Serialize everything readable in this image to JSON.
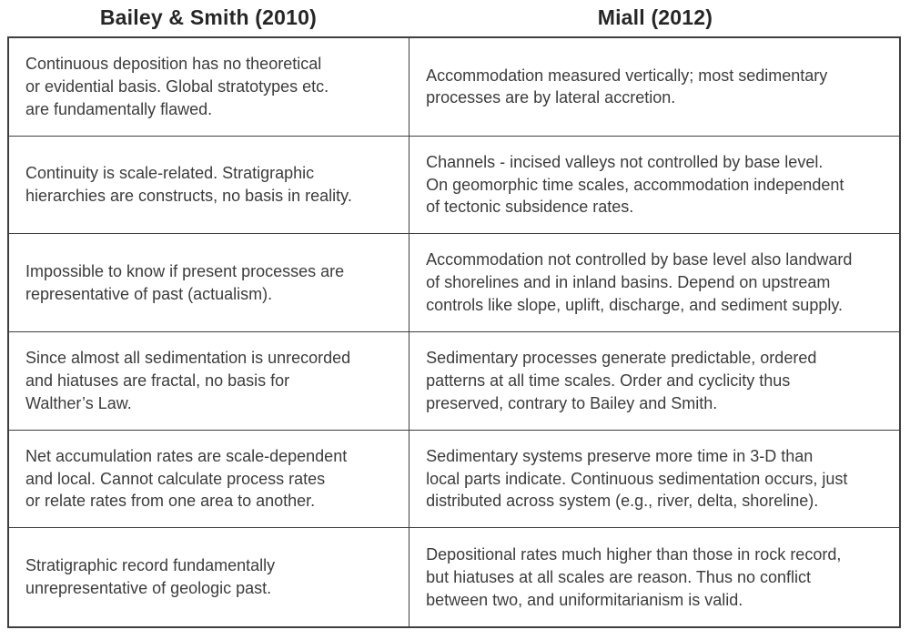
{
  "colors": {
    "background": "#ffffff",
    "text": "#3c3c3c",
    "heading": "#262626",
    "border": "#3f3f3f"
  },
  "table": {
    "columns": [
      {
        "header": "Bailey & Smith (2010)"
      },
      {
        "header": "Miall (2012)"
      }
    ],
    "rows": [
      {
        "left": "Continuous deposition has no theoretical\nor evidential basis. Global stratotypes etc.\nare fundamentally flawed.",
        "right": "Accommodation measured vertically; most sedimentary\nprocesses are by lateral accretion."
      },
      {
        "left": "Continuity is scale-related. Stratigraphic\nhierarchies are constructs, no basis in reality.",
        "right": "Channels - incised valleys not controlled by base level.\nOn geomorphic time scales, accommodation independent\nof tectonic subsidence rates."
      },
      {
        "left": "Impossible to know if present processes are\nrepresentative of past (actualism).",
        "right": "Accommodation not controlled by base level also landward\nof shorelines and in inland basins. Depend on upstream\ncontrols like slope, uplift, discharge, and sediment supply."
      },
      {
        "left": "Since almost all sedimentation is unrecorded\nand hiatuses are fractal, no basis for\nWalther’s Law.",
        "right": "Sedimentary processes generate predictable, ordered\npatterns at all time scales. Order and cyclicity thus\npreserved, contrary to Bailey and Smith."
      },
      {
        "left": "Net accumulation rates are scale-dependent\nand local. Cannot calculate process rates\nor relate rates from one area to another.",
        "right": "Sedimentary systems preserve more time in 3-D than\nlocal parts indicate. Continuous sedimentation occurs, just\ndistributed across system (e.g., river, delta, shoreline)."
      },
      {
        "left": "Stratigraphic record fundamentally\nunrepresentative of geologic past.",
        "right": "Depositional rates much higher than those in rock record,\nbut hiatuses at all scales are reason. Thus no conflict\nbetween two, and uniformitarianism is valid."
      }
    ]
  }
}
